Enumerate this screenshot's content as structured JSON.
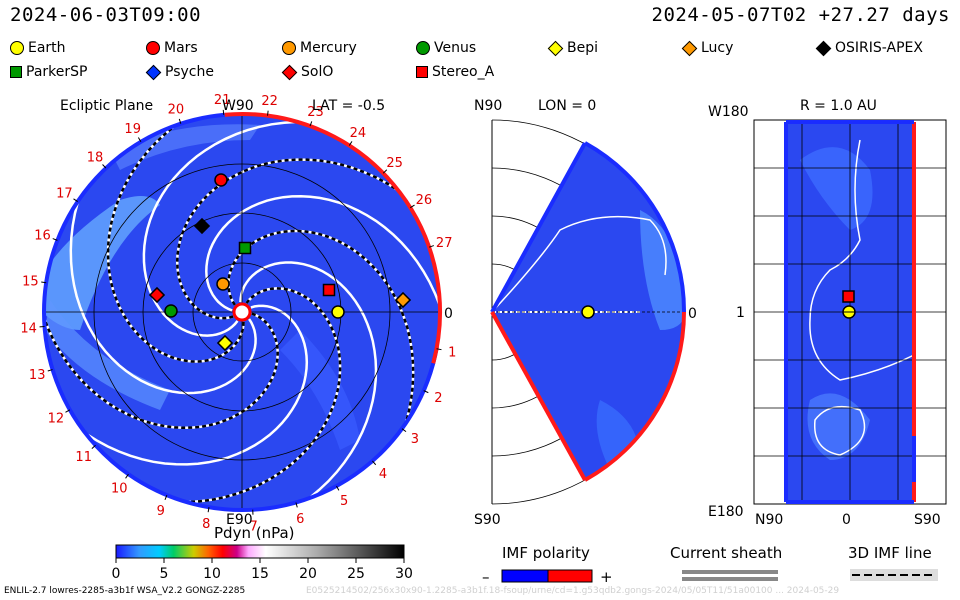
{
  "header": {
    "left_time": "2024-06-03T09:00",
    "right_time": "2024-05-07T02 +27.27 days"
  },
  "legend": [
    {
      "label": "Earth",
      "shape": "circle",
      "color": "#ffff00"
    },
    {
      "label": "Mars",
      "shape": "circle",
      "color": "#ff0000"
    },
    {
      "label": "Mercury",
      "shape": "circle",
      "color": "#ff9900"
    },
    {
      "label": "Venus",
      "shape": "circle",
      "color": "#009900"
    },
    {
      "label": "Bepi",
      "shape": "diamond",
      "color": "#ffff00"
    },
    {
      "label": "Lucy",
      "shape": "diamond",
      "color": "#ff9900"
    },
    {
      "label": "OSIRIS-APEX",
      "shape": "diamond",
      "color": "#000000"
    },
    {
      "label": "ParkerSP",
      "shape": "square",
      "color": "#009900"
    },
    {
      "label": "Psyche",
      "shape": "diamond",
      "color": "#0033ff"
    },
    {
      "label": "SolO",
      "shape": "diamond",
      "color": "#ff0000"
    },
    {
      "label": "Stereo_A",
      "shape": "square",
      "color": "#ff0000"
    }
  ],
  "panels": {
    "ecliptic": {
      "title": "Ecliptic Plane",
      "top_label": "W90",
      "lat_label": "LAT = -0.5",
      "right_label": "0",
      "bottom_label": "E90",
      "carrington": [
        "1",
        "2",
        "3",
        "4",
        "5",
        "6",
        "7",
        "8",
        "9",
        "10",
        "11",
        "12",
        "13",
        "14",
        "15",
        "16",
        "17",
        "18",
        "19",
        "20",
        "21",
        "22",
        "23",
        "24",
        "25",
        "26",
        "27"
      ]
    },
    "meridional": {
      "top_left": "N90",
      "lon_label": "LON = 0",
      "right_label": "0",
      "bottom_left": "S90"
    },
    "map": {
      "title": "R = 1.0 AU",
      "top_left": "W180",
      "left_mid": "1",
      "bottom_left": "E180",
      "xlabels": [
        "N90",
        "0",
        "S90"
      ]
    }
  },
  "colorbar": {
    "title": "Pdyn (nPa)",
    "ticks": [
      "0",
      "5",
      "10",
      "15",
      "20",
      "25",
      "30"
    ]
  },
  "keys": {
    "imf_title": "IMF polarity",
    "minus": "–",
    "plus": "+",
    "sheath_title": "Current sheath",
    "line_title": "3D IMF line"
  },
  "footer": {
    "left": "ENLIL-2.7 lowres-2285-a3b1f WSA_V2.2 GONGZ-2285",
    "faint": "E0525214502/256x30x90-1.2285-a3b1f.18-fsoup/urne/cd=1.g53qdb2.gongs-2024/05/05T11/51a00100 ... 2024-05-29"
  },
  "chart_data": {
    "type": "heatmap",
    "quantity": "Pdyn (nPa)",
    "colorbar_range": [
      0,
      30
    ],
    "panels": [
      "Ecliptic Plane",
      "LON = 0",
      "R = 1.0 AU"
    ],
    "lat": -0.5,
    "lon": 0,
    "r_au": 1.0,
    "background_level": 3
  }
}
